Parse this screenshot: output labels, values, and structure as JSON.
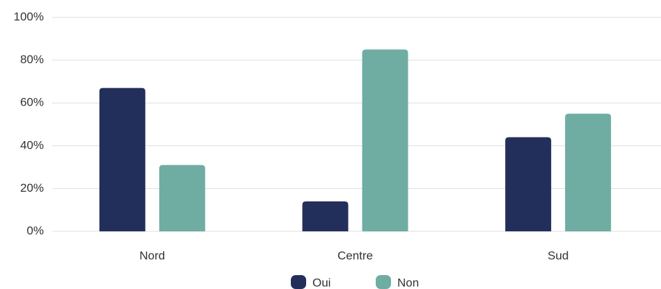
{
  "chart_data": {
    "type": "bar",
    "categories": [
      "Nord",
      "Centre",
      "Sud"
    ],
    "series": [
      {
        "name": "Oui",
        "color": "#232f5b",
        "values": [
          67,
          14,
          44
        ]
      },
      {
        "name": "Non",
        "color": "#6fada3",
        "values": [
          31,
          85,
          55
        ]
      }
    ],
    "ylim": [
      0,
      100
    ],
    "yticks": [
      {
        "value": 0,
        "label": "0%"
      },
      {
        "value": 20,
        "label": "20%"
      },
      {
        "value": 40,
        "label": "40%"
      },
      {
        "value": 60,
        "label": "60%"
      },
      {
        "value": 80,
        "label": "80%"
      },
      {
        "value": 100,
        "label": "100%"
      }
    ],
    "grid": true,
    "legend": "bottom"
  }
}
